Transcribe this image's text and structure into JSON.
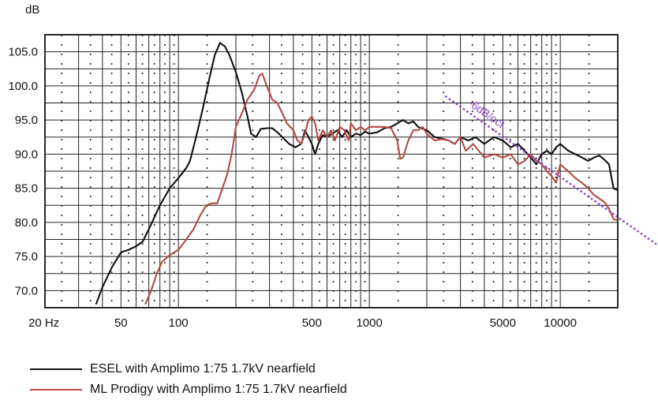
{
  "chart_data": {
    "type": "line",
    "title": "",
    "ylabel": "dB",
    "xlabel": "",
    "x_scale": "log",
    "xlim": [
      20,
      20000
    ],
    "ylim": [
      67.5,
      107.5
    ],
    "grid": true,
    "yticks": [
      {
        "value": 70,
        "label": "70.0"
      },
      {
        "value": 75,
        "label": "75.0"
      },
      {
        "value": 80,
        "label": "80.0"
      },
      {
        "value": 85,
        "label": "85.0"
      },
      {
        "value": 90,
        "label": "90.0"
      },
      {
        "value": 95,
        "label": "95.0"
      },
      {
        "value": 100,
        "label": "100.0"
      },
      {
        "value": 105,
        "label": "105.0"
      }
    ],
    "xticks": [
      {
        "value": 20,
        "label": "20 Hz"
      },
      {
        "value": 50,
        "label": "50"
      },
      {
        "value": 100,
        "label": "100"
      },
      {
        "value": 500,
        "label": "500"
      },
      {
        "value": 1000,
        "label": "1000"
      },
      {
        "value": 5000,
        "label": "5000"
      },
      {
        "value": 10000,
        "label": "10000"
      }
    ],
    "legend_position": "bottom",
    "series": [
      {
        "name": "ESEL with Amplimo 1:75 1.7kV nearfield",
        "color": "#111111",
        "points": [
          [
            37,
            68
          ],
          [
            40,
            70.5
          ],
          [
            45,
            73.5
          ],
          [
            50,
            75.6
          ],
          [
            55,
            76
          ],
          [
            60,
            76.5
          ],
          [
            65,
            77.2
          ],
          [
            70,
            79
          ],
          [
            80,
            82.5
          ],
          [
            90,
            85
          ],
          [
            100,
            86.5
          ],
          [
            110,
            88
          ],
          [
            115,
            89
          ],
          [
            125,
            93
          ],
          [
            135,
            97
          ],
          [
            145,
            101
          ],
          [
            155,
            104.5
          ],
          [
            165,
            106.3
          ],
          [
            175,
            105.8
          ],
          [
            185,
            104.5
          ],
          [
            200,
            102
          ],
          [
            215,
            99
          ],
          [
            230,
            95.5
          ],
          [
            240,
            93
          ],
          [
            255,
            92.5
          ],
          [
            270,
            93.7
          ],
          [
            290,
            93.8
          ],
          [
            310,
            93.8
          ],
          [
            330,
            93.2
          ],
          [
            350,
            92.5
          ],
          [
            380,
            91.5
          ],
          [
            410,
            91
          ],
          [
            440,
            91.5
          ],
          [
            460,
            93.5
          ],
          [
            480,
            92.5
          ],
          [
            500,
            91.5
          ],
          [
            520,
            90
          ],
          [
            540,
            91.5
          ],
          [
            570,
            92.8
          ],
          [
            600,
            92.5
          ],
          [
            640,
            93
          ],
          [
            680,
            93.5
          ],
          [
            720,
            92.5
          ],
          [
            760,
            93.5
          ],
          [
            800,
            92.5
          ],
          [
            850,
            93
          ],
          [
            900,
            92.8
          ],
          [
            950,
            93.3
          ],
          [
            1000,
            93
          ],
          [
            1100,
            93.2
          ],
          [
            1200,
            93.8
          ],
          [
            1300,
            94
          ],
          [
            1400,
            94.5
          ],
          [
            1500,
            95
          ],
          [
            1600,
            94.5
          ],
          [
            1700,
            94.8
          ],
          [
            1800,
            94
          ],
          [
            2000,
            93.5
          ],
          [
            2200,
            92.5
          ],
          [
            2400,
            92.3
          ],
          [
            2600,
            92
          ],
          [
            2800,
            91.5
          ],
          [
            3000,
            92.5
          ],
          [
            3300,
            92
          ],
          [
            3600,
            92.5
          ],
          [
            4000,
            91.5
          ],
          [
            4500,
            92.5
          ],
          [
            5000,
            92
          ],
          [
            5500,
            91
          ],
          [
            6000,
            91.5
          ],
          [
            6500,
            90.5
          ],
          [
            7000,
            89.5
          ],
          [
            7500,
            88.5
          ],
          [
            8000,
            90
          ],
          [
            8500,
            90.5
          ],
          [
            9000,
            90
          ],
          [
            9500,
            91
          ],
          [
            10000,
            91.5
          ],
          [
            11000,
            90.5
          ],
          [
            12000,
            90
          ],
          [
            13000,
            89.5
          ],
          [
            14000,
            89
          ],
          [
            15000,
            89.5
          ],
          [
            16000,
            89.8
          ],
          [
            17000,
            89.2
          ],
          [
            18000,
            88.5
          ],
          [
            19000,
            85
          ],
          [
            20000,
            84.7
          ],
          [
            21000,
            84.7
          ]
        ]
      },
      {
        "name": "ML Prodigy with Amplimo 1:75 1.7kV nearfield",
        "color": "#b34a42",
        "points": [
          [
            67,
            68
          ],
          [
            72,
            70
          ],
          [
            77,
            72.5
          ],
          [
            82,
            74.2
          ],
          [
            90,
            75.2
          ],
          [
            100,
            76
          ],
          [
            110,
            77.5
          ],
          [
            120,
            79
          ],
          [
            130,
            81
          ],
          [
            140,
            82.5
          ],
          [
            150,
            82.8
          ],
          [
            160,
            82.8
          ],
          [
            170,
            85
          ],
          [
            180,
            87
          ],
          [
            190,
            90
          ],
          [
            200,
            94
          ],
          [
            215,
            96
          ],
          [
            230,
            98
          ],
          [
            250,
            99.5
          ],
          [
            265,
            101.5
          ],
          [
            275,
            101.8
          ],
          [
            290,
            100
          ],
          [
            310,
            98
          ],
          [
            330,
            97.5
          ],
          [
            350,
            96
          ],
          [
            370,
            94.5
          ],
          [
            400,
            93.5
          ],
          [
            420,
            92
          ],
          [
            440,
            91.5
          ],
          [
            460,
            93
          ],
          [
            480,
            95
          ],
          [
            500,
            95.5
          ],
          [
            520,
            94.5
          ],
          [
            540,
            92
          ],
          [
            570,
            93.5
          ],
          [
            600,
            92.5
          ],
          [
            630,
            93.5
          ],
          [
            660,
            92
          ],
          [
            700,
            94
          ],
          [
            740,
            93.5
          ],
          [
            780,
            92
          ],
          [
            800,
            94.5
          ],
          [
            850,
            93.5
          ],
          [
            900,
            94
          ],
          [
            950,
            93.5
          ],
          [
            1000,
            94
          ],
          [
            1100,
            94
          ],
          [
            1200,
            94
          ],
          [
            1300,
            93.8
          ],
          [
            1400,
            92
          ],
          [
            1450,
            89.3
          ],
          [
            1500,
            89.5
          ],
          [
            1600,
            92
          ],
          [
            1700,
            93.5
          ],
          [
            1800,
            93.5
          ],
          [
            1900,
            94
          ],
          [
            2000,
            93
          ],
          [
            2200,
            92
          ],
          [
            2400,
            92.2
          ],
          [
            2600,
            92
          ],
          [
            2800,
            91.5
          ],
          [
            3000,
            92.5
          ],
          [
            3200,
            90.5
          ],
          [
            3500,
            91.5
          ],
          [
            4000,
            89.5
          ],
          [
            4500,
            90
          ],
          [
            5000,
            89.5
          ],
          [
            5500,
            90
          ],
          [
            6000,
            88.5
          ],
          [
            6500,
            89
          ],
          [
            7000,
            90
          ],
          [
            7500,
            89
          ],
          [
            8000,
            88.5
          ],
          [
            8500,
            87.5
          ],
          [
            9000,
            86.8
          ],
          [
            9500,
            85.8
          ],
          [
            10000,
            88.5
          ],
          [
            11000,
            87.5
          ],
          [
            12000,
            86.5
          ],
          [
            13000,
            85.8
          ],
          [
            14000,
            85
          ],
          [
            15000,
            84
          ],
          [
            16000,
            83.5
          ],
          [
            17000,
            83
          ],
          [
            18000,
            82
          ],
          [
            19000,
            80.5
          ],
          [
            20000,
            80.3
          ],
          [
            21000,
            80.3
          ]
        ]
      }
    ],
    "annotations": [
      {
        "text": "-6dB/oct",
        "color": "#8a3fd0",
        "line_points": [
          [
            2500,
            98.5
          ],
          [
            33000,
            76.5
          ]
        ],
        "label_at": [
          4000,
          95.5
        ]
      }
    ]
  }
}
